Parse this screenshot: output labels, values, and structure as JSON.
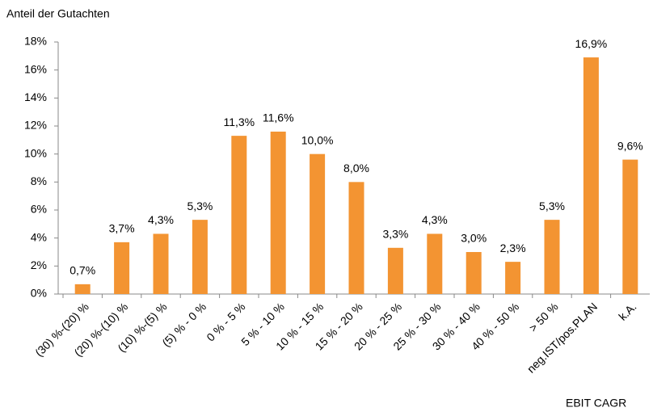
{
  "chart_data": {
    "type": "bar",
    "ylabel": "Anteil der Gutachten",
    "xlabel": "EBIT CAGR",
    "categories": [
      "(30) %-(20) %",
      "(20) %-(10) %",
      "(10) %-(5) %",
      "(5) % - 0 %",
      "0 % - 5 %",
      "5 % - 10 %",
      "10 % - 15 %",
      "15 % - 20 %",
      "20 % - 25 %",
      "25 % - 30 %",
      "30 % - 40 %",
      "40 % - 50 %",
      "> 50 %",
      "neg.IST/pos.PLAN",
      "k.A."
    ],
    "values": [
      0.7,
      3.7,
      4.3,
      5.3,
      11.3,
      11.6,
      10.0,
      8.0,
      3.3,
      4.3,
      3.0,
      2.3,
      5.3,
      16.9,
      9.6
    ],
    "value_labels": [
      "0,7%",
      "3,7%",
      "4,3%",
      "5,3%",
      "11,3%",
      "11,6%",
      "10,0%",
      "8,0%",
      "3,3%",
      "4,3%",
      "3,0%",
      "2,3%",
      "5,3%",
      "16,9%",
      "9,6%"
    ],
    "color": "#f39432",
    "ylim": [
      0,
      18
    ],
    "yticks": [
      {
        "value": 0,
        "label": "0%"
      },
      {
        "value": 2,
        "label": "2%"
      },
      {
        "value": 4,
        "label": "4%"
      },
      {
        "value": 6,
        "label": "6%"
      },
      {
        "value": 8,
        "label": "8%"
      },
      {
        "value": 10,
        "label": "10%"
      },
      {
        "value": 12,
        "label": "12%"
      },
      {
        "value": 14,
        "label": "14%"
      },
      {
        "value": 16,
        "label": "16%"
      },
      {
        "value": 18,
        "label": "18%"
      }
    ],
    "grid": false
  }
}
